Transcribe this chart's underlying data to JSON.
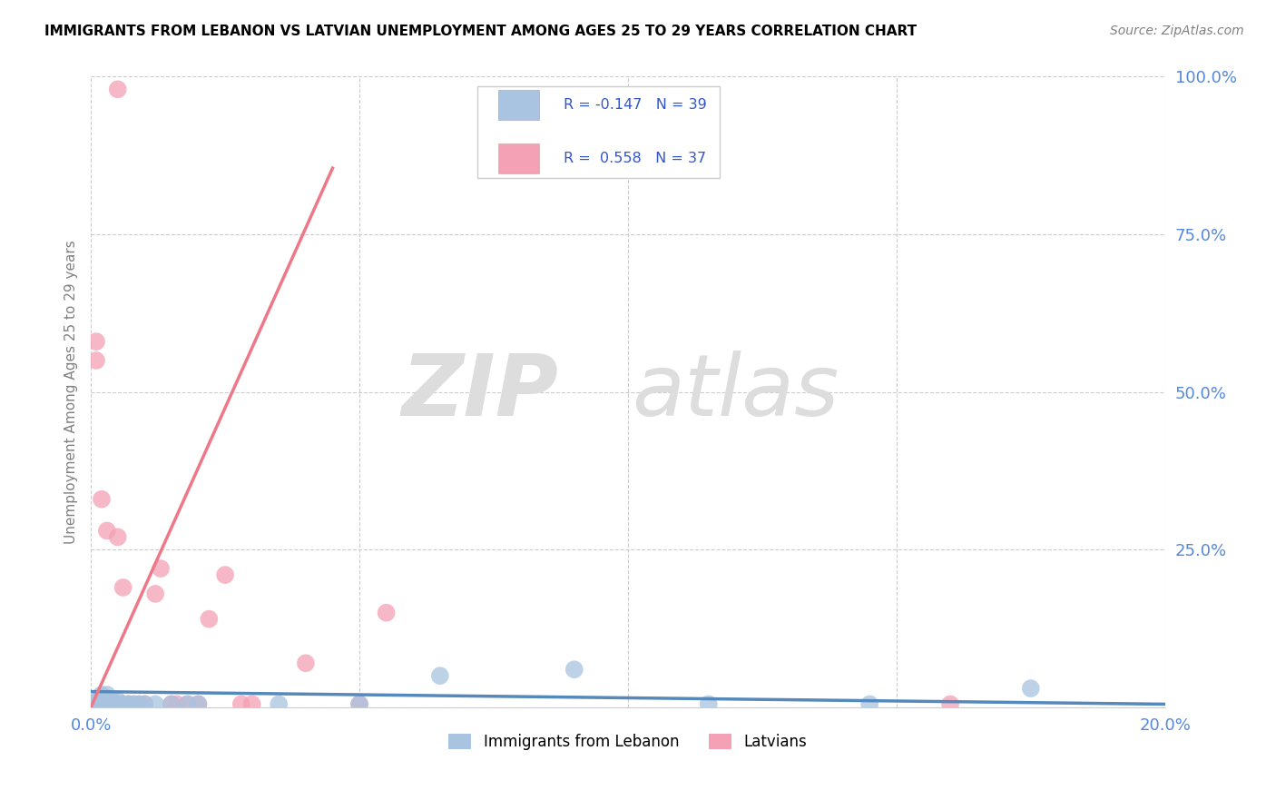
{
  "title": "IMMIGRANTS FROM LEBANON VS LATVIAN UNEMPLOYMENT AMONG AGES 25 TO 29 YEARS CORRELATION CHART",
  "source": "Source: ZipAtlas.com",
  "ylabel": "Unemployment Among Ages 25 to 29 years",
  "xlim": [
    0,
    0.2
  ],
  "ylim": [
    0,
    1.0
  ],
  "xticks": [
    0.0,
    0.05,
    0.1,
    0.15,
    0.2
  ],
  "xticklabels": [
    "0.0%",
    "",
    "",
    "",
    "20.0%"
  ],
  "yticks": [
    0.0,
    0.25,
    0.5,
    0.75,
    1.0
  ],
  "yticklabels": [
    "",
    "25.0%",
    "50.0%",
    "75.0%",
    "100.0%"
  ],
  "legend_r_blue": "-0.147",
  "legend_n_blue": "39",
  "legend_r_pink": "0.558",
  "legend_n_pink": "37",
  "blue_color": "#a8c4e0",
  "pink_color": "#f4a0b5",
  "blue_line_color": "#5588bb",
  "pink_line_color": "#ee7788",
  "tick_color": "#5588dd",
  "watermark_zip": "ZIP",
  "watermark_atlas": "atlas",
  "blue_scatter_x": [
    0.0003,
    0.0005,
    0.0008,
    0.001,
    0.001,
    0.0012,
    0.0013,
    0.0015,
    0.0015,
    0.002,
    0.002,
    0.002,
    0.0025,
    0.003,
    0.003,
    0.003,
    0.003,
    0.0035,
    0.004,
    0.004,
    0.004,
    0.005,
    0.005,
    0.006,
    0.007,
    0.008,
    0.009,
    0.01,
    0.012,
    0.015,
    0.018,
    0.02,
    0.035,
    0.05,
    0.065,
    0.09,
    0.115,
    0.145,
    0.175
  ],
  "blue_scatter_y": [
    0.005,
    0.005,
    0.005,
    0.005,
    0.01,
    0.005,
    0.005,
    0.005,
    0.01,
    0.005,
    0.01,
    0.02,
    0.005,
    0.005,
    0.005,
    0.01,
    0.02,
    0.005,
    0.005,
    0.01,
    0.005,
    0.005,
    0.01,
    0.005,
    0.005,
    0.005,
    0.005,
    0.005,
    0.005,
    0.005,
    0.005,
    0.005,
    0.005,
    0.005,
    0.05,
    0.06,
    0.005,
    0.005,
    0.03
  ],
  "pink_scatter_x": [
    0.0003,
    0.0005,
    0.001,
    0.001,
    0.0015,
    0.002,
    0.002,
    0.0025,
    0.003,
    0.003,
    0.003,
    0.004,
    0.004,
    0.005,
    0.005,
    0.006,
    0.006,
    0.007,
    0.007,
    0.008,
    0.009,
    0.01,
    0.012,
    0.013,
    0.015,
    0.016,
    0.018,
    0.02,
    0.022,
    0.025,
    0.028,
    0.03,
    0.04,
    0.05,
    0.055,
    0.16,
    0.005
  ],
  "pink_scatter_y": [
    0.005,
    0.005,
    0.55,
    0.58,
    0.005,
    0.33,
    0.005,
    0.005,
    0.005,
    0.28,
    0.005,
    0.005,
    0.005,
    0.27,
    0.005,
    0.005,
    0.19,
    0.005,
    0.005,
    0.005,
    0.005,
    0.005,
    0.18,
    0.22,
    0.005,
    0.005,
    0.005,
    0.005,
    0.14,
    0.21,
    0.005,
    0.005,
    0.07,
    0.005,
    0.15,
    0.005,
    0.98
  ],
  "blue_trend_x": [
    0.0,
    0.2
  ],
  "blue_trend_y": [
    0.025,
    0.005
  ],
  "pink_trend_x": [
    0.0,
    0.045
  ],
  "pink_trend_y": [
    0.0,
    0.855
  ]
}
